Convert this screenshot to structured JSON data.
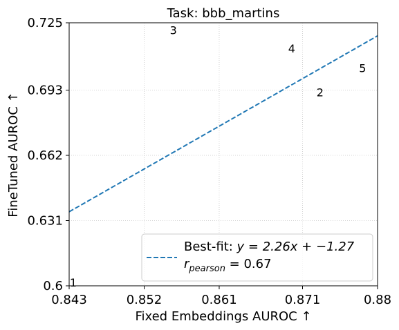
{
  "chart_data": {
    "type": "scatter",
    "title": "Task: bbb_martins",
    "xlabel": "Fixed Embeddings AUROC ↑",
    "ylabel": "FineTuned AUROC ↑",
    "xlim": [
      0.843,
      0.88
    ],
    "ylim": [
      0.6,
      0.725
    ],
    "xticks": [
      0.843,
      0.852,
      0.861,
      0.871,
      0.88
    ],
    "xtick_labels": [
      "0.843",
      "0.852",
      "0.861",
      "0.871",
      "0.88"
    ],
    "yticks": [
      0.6,
      0.631,
      0.662,
      0.693,
      0.725
    ],
    "ytick_labels": [
      "0.6",
      "0.631",
      "0.662",
      "0.693",
      "0.725"
    ],
    "grid": true,
    "points": [
      {
        "label": "1",
        "x": 0.8435,
        "y": 0.6012
      },
      {
        "label": "2",
        "x": 0.8731,
        "y": 0.6915
      },
      {
        "label": "3",
        "x": 0.8555,
        "y": 0.7211
      },
      {
        "label": "4",
        "x": 0.8697,
        "y": 0.7124
      },
      {
        "label": "5",
        "x": 0.8782,
        "y": 0.7031
      }
    ],
    "fit_line": {
      "slope": 2.26,
      "intercept": -1.27,
      "color": "#1f77b4",
      "style": "dashed"
    },
    "legend": {
      "placement": "lower-right",
      "line1": "Best-fit: ",
      "line1_math": "y = 2.26x + −1.27",
      "line2_math": "r",
      "line2_sub": "pearson",
      "line2_rest": " = 0.67"
    }
  }
}
